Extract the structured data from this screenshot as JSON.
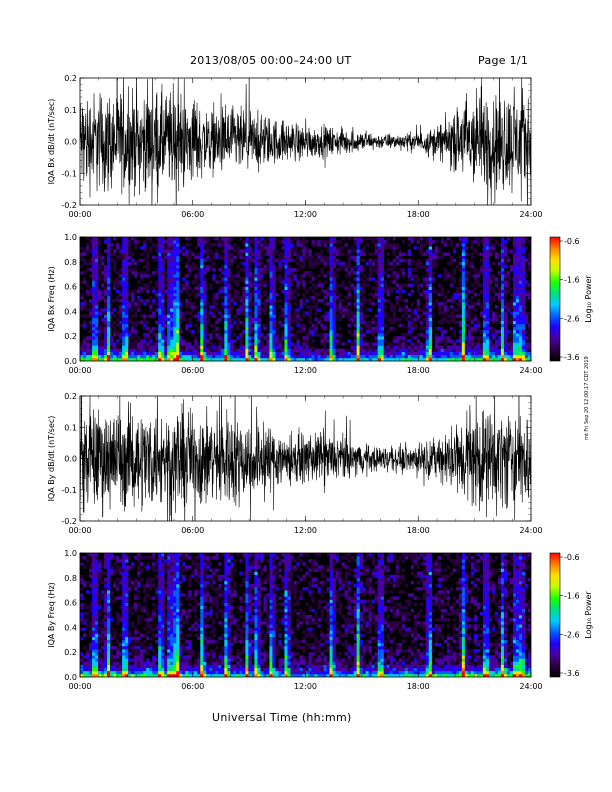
{
  "header": {
    "title": "2013/08/05  00:00–24:00 UT",
    "page": "Page 1/1"
  },
  "x_axis_label": "Universal Time (hh:mm)",
  "side_credit": "mt Fri Sep 20 12:00:17 CDT 2019",
  "colors": {
    "trace": "#000000",
    "colorbar_stops": [
      "#000000",
      "#2a0040",
      "#4a00a0",
      "#2000ff",
      "#0060ff",
      "#00ccff",
      "#00e080",
      "#20ff00",
      "#c0ff00",
      "#ffe000",
      "#ff8000",
      "#ff0000"
    ]
  },
  "chart_data": [
    {
      "type": "line",
      "ylabel": "IQA Bx dB/dt (nT/sec)",
      "x_ticks": [
        "00:00",
        "06:00",
        "12:00",
        "18:00",
        "24:00"
      ],
      "y_ticks": [
        "0.2",
        "0.1",
        "0.0",
        "-0.1",
        "-0.2"
      ],
      "xlim": [
        0,
        24
      ],
      "ylim": [
        -0.2,
        0.2
      ],
      "envelope_hours": [
        0,
        1,
        2,
        3,
        4,
        5,
        6,
        7,
        8,
        9,
        10,
        11,
        12,
        13,
        14,
        15,
        16,
        17,
        18,
        19,
        20,
        21,
        22,
        23,
        24
      ],
      "envelope_amplitude": [
        0.2,
        0.2,
        0.2,
        0.19,
        0.2,
        0.2,
        0.17,
        0.12,
        0.14,
        0.12,
        0.1,
        0.08,
        0.07,
        0.06,
        0.05,
        0.04,
        0.03,
        0.03,
        0.04,
        0.06,
        0.12,
        0.2,
        0.2,
        0.2,
        0.2
      ]
    },
    {
      "type": "heatmap",
      "ylabel": "IQA Bx Freq (Hz)",
      "x_ticks": [
        "00:00",
        "06:00",
        "12:00",
        "18:00",
        "24:00"
      ],
      "y_ticks": [
        "1.0",
        "0.8",
        "0.6",
        "0.4",
        "0.2",
        "0.0"
      ],
      "xlim": [
        0,
        24
      ],
      "ylim": [
        0,
        1.0
      ],
      "colorbar": {
        "label": "Log₁₀ Power",
        "ticks": [
          "-0.6",
          "-1.6",
          "-2.6",
          "-3.6"
        ],
        "range": [
          -3.6,
          -0.6
        ]
      },
      "bursts_hours": [
        0.8,
        1.5,
        2.4,
        4.3,
        4.8,
        5.0,
        5.2,
        6.5,
        7.8,
        8.9,
        9.4,
        10.2,
        11.0,
        13.4,
        14.8,
        16.0,
        18.6,
        20.4,
        21.6,
        22.5,
        23.2,
        23.5
      ]
    },
    {
      "type": "line",
      "ylabel": "IQA By dB/dt (nT/sec)",
      "x_ticks": [
        "00:00",
        "06:00",
        "12:00",
        "18:00",
        "24:00"
      ],
      "y_ticks": [
        "0.2",
        "0.1",
        "0.0",
        "-0.1",
        "-0.2"
      ],
      "xlim": [
        0,
        24
      ],
      "ylim": [
        -0.2,
        0.2
      ],
      "envelope_hours": [
        0,
        1,
        2,
        3,
        4,
        5,
        6,
        7,
        8,
        9,
        10,
        11,
        12,
        13,
        14,
        15,
        16,
        17,
        18,
        19,
        20,
        21,
        22,
        23,
        24
      ],
      "envelope_amplitude": [
        0.2,
        0.2,
        0.2,
        0.2,
        0.2,
        0.2,
        0.2,
        0.18,
        0.2,
        0.16,
        0.14,
        0.11,
        0.09,
        0.1,
        0.09,
        0.06,
        0.05,
        0.05,
        0.06,
        0.08,
        0.14,
        0.2,
        0.2,
        0.2,
        0.2
      ]
    },
    {
      "type": "heatmap",
      "ylabel": "IQA By Freq (Hz)",
      "x_ticks": [
        "00:00",
        "06:00",
        "12:00",
        "18:00",
        "24:00"
      ],
      "y_ticks": [
        "1.0",
        "0.8",
        "0.6",
        "0.4",
        "0.2",
        "0.0"
      ],
      "xlim": [
        0,
        24
      ],
      "ylim": [
        0,
        1.0
      ],
      "colorbar": {
        "label": "Log₁₀ Power",
        "ticks": [
          "-0.6",
          "-1.6",
          "-2.6",
          "-3.6"
        ],
        "range": [
          -3.6,
          -0.6
        ]
      },
      "bursts_hours": [
        0.8,
        1.5,
        2.4,
        4.3,
        4.8,
        5.0,
        5.2,
        6.5,
        7.8,
        8.9,
        9.4,
        10.2,
        11.0,
        13.4,
        14.8,
        16.0,
        18.6,
        20.4,
        21.6,
        22.5,
        23.2,
        23.5
      ]
    }
  ]
}
